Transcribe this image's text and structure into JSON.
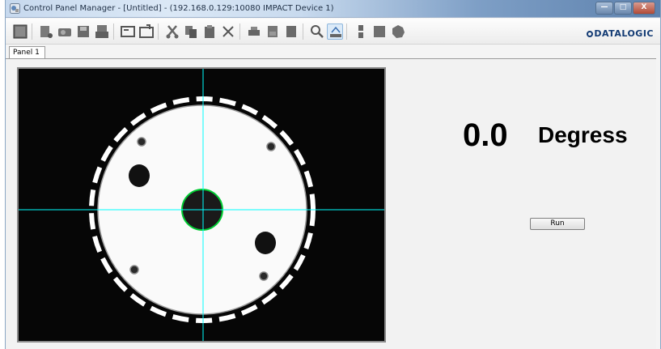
{
  "window": {
    "title": "Control Panel Manager - [Untitled] - (192.168.0.129:10080 IMPACT Device 1)",
    "controls": {
      "minimize": "—",
      "maximize": "□",
      "close": "X"
    }
  },
  "toolbar": {
    "icons": [
      "select-tool",
      "device-tool",
      "camera-tool",
      "save-tool",
      "stack-tool",
      "screen-tool",
      "screen-edit-tool",
      "cut",
      "copy",
      "paste",
      "delete",
      "print",
      "print-preview",
      "page",
      "zoom",
      "grid-snap",
      "align",
      "square",
      "circle"
    ],
    "logo": "DATALOGIC"
  },
  "tabs": [
    {
      "label": "Panel 1",
      "active": true
    }
  ],
  "panel": {
    "camera_view": {
      "crosshair_color": "#00ffff",
      "detected_edge_color": "#00cc33"
    },
    "result": {
      "value": "0.0",
      "unit": "Degress"
    },
    "run_button": {
      "label": "Run"
    }
  }
}
